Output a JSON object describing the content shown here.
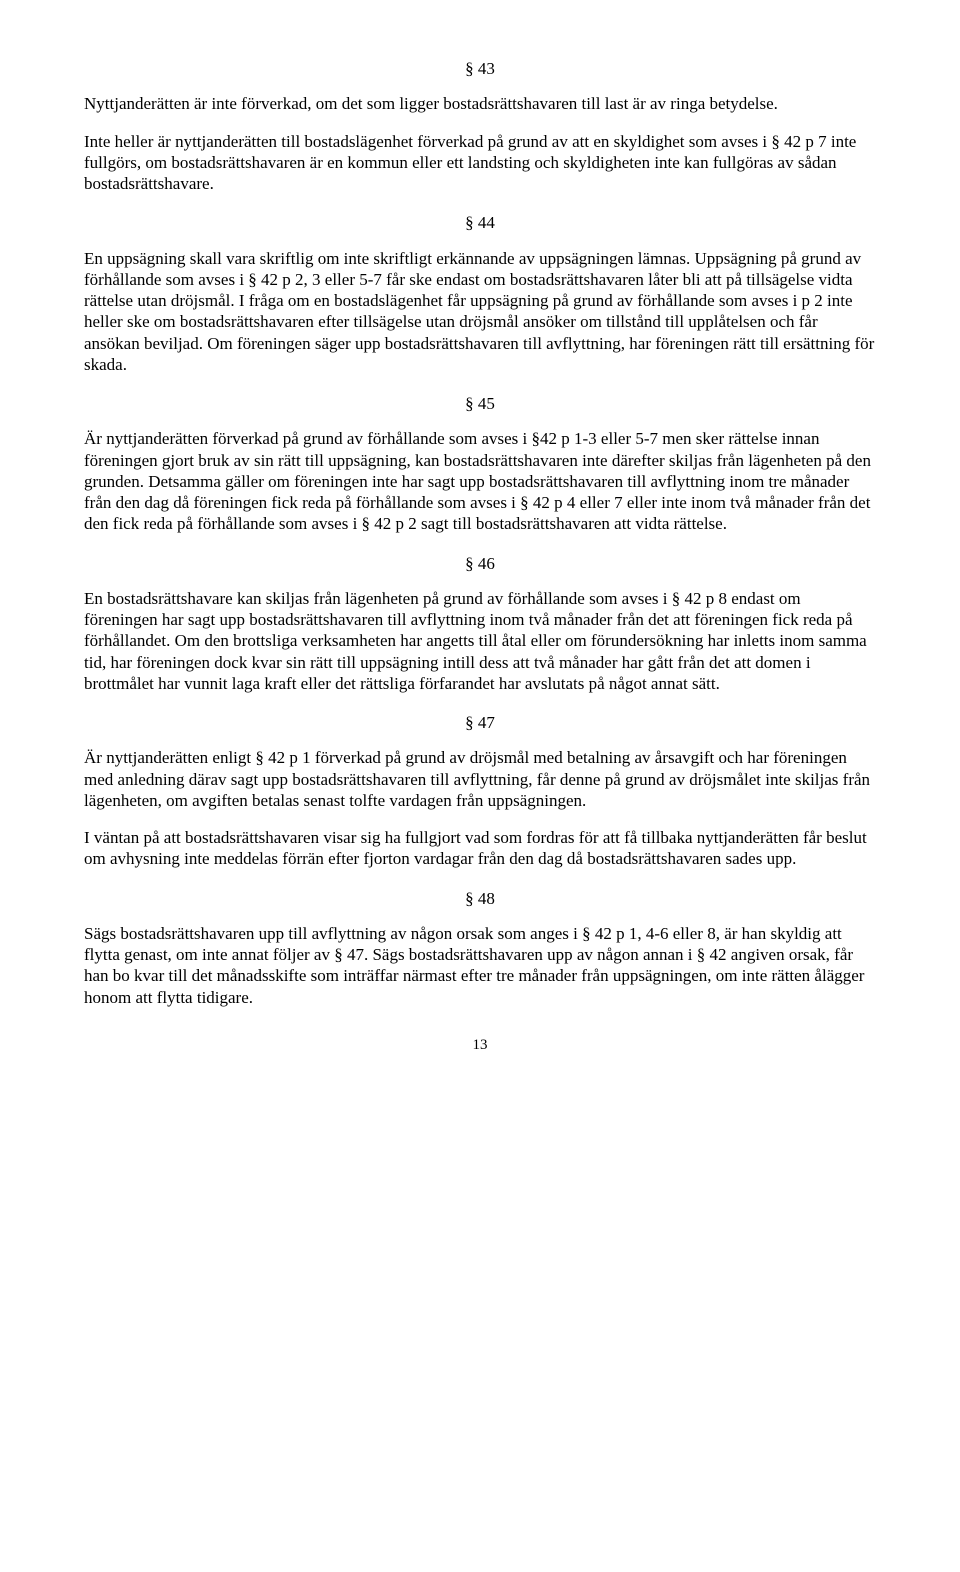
{
  "doc": {
    "page_number": "13",
    "sections": {
      "s43": {
        "heading": "§ 43",
        "p1": "Nyttjanderätten är inte förverkad, om det som ligger bostadsrättshavaren till last är av ringa betydelse.",
        "p2": "Inte heller är nyttjanderätten till bostadslägenhet förverkad på grund av att en skyldighet som avses i § 42 p 7 inte fullgörs, om bostadsrättshavaren är en kommun eller ett landsting och skyldigheten inte kan fullgöras av sådan bostadsrättshavare."
      },
      "s44": {
        "heading": "§ 44",
        "p1": "En uppsägning skall vara skriftlig om inte skriftligt erkännande av uppsägningen lämnas. Uppsägning på grund av förhållande som avses i § 42 p 2, 3 eller 5-7 får ske endast om bostadsrättshavaren låter bli att på tillsägelse vidta rättelse utan dröjsmål. I fråga om en bostadslägenhet får uppsägning på grund av förhållande som avses i p 2 inte heller ske om bostadsrättshavaren efter tillsägelse utan dröjsmål ansöker om tillstånd till upplåtelsen och får ansökan beviljad. Om föreningen säger upp bostadsrättshavaren till avflyttning, har föreningen rätt till ersättning för skada."
      },
      "s45": {
        "heading": "§ 45",
        "p1": "Är nyttjanderätten förverkad på grund av förhållande som avses i §42 p 1-3 eller 5-7 men sker rättelse innan föreningen gjort bruk av sin rätt till uppsägning, kan bostadsrättshavaren inte därefter skiljas från lägenheten på den grunden. Detsamma gäller om föreningen inte har sagt upp bostadsrättshavaren till avflyttning inom tre månader från den dag då föreningen fick reda på förhållande som avses i § 42 p 4 eller 7 eller inte inom två månader från det den fick reda på förhållande som avses i § 42 p 2 sagt till bostadsrättshavaren att vidta rättelse."
      },
      "s46": {
        "heading": "§ 46",
        "p1": "En bostadsrättshavare kan skiljas från lägenheten på grund av förhållande som avses i § 42 p 8 endast om föreningen har sagt upp bostadsrättshavaren till avflyttning inom två månader från det att föreningen fick reda på förhållandet. Om den brottsliga verksamheten har angetts till åtal eller om förundersökning har inletts inom samma tid, har föreningen dock kvar sin rätt till uppsägning intill dess att två månader har gått från det att domen i brottmålet har vunnit laga kraft eller det rättsliga förfarandet har avslutats på något annat sätt."
      },
      "s47": {
        "heading": "§ 47",
        "p1": "Är nyttjanderätten enligt § 42 p 1 förverkad på grund av dröjsmål med betalning av årsavgift och har föreningen med anledning därav sagt upp bostadsrättshavaren till avflyttning, får denne på grund av dröjsmålet inte skiljas från lägenheten, om avgiften betalas senast tolfte vardagen från uppsägningen.",
        "p2": "I väntan på att bostadsrättshavaren visar sig ha fullgjort vad som fordras för att få tillbaka nyttjanderätten får beslut om avhysning inte meddelas förrän efter fjorton vardagar från den dag då bostadsrättshavaren sades upp."
      },
      "s48": {
        "heading": "§ 48",
        "p1": "Sägs bostadsrättshavaren upp till avflyttning av någon orsak som anges i § 42 p 1, 4-6 eller 8, är han skyldig att flytta genast, om inte annat följer av § 47. Sägs bostadsrättshavaren upp av någon annan i § 42 angiven orsak, får han bo kvar till det månadsskifte som inträffar närmast efter tre månader från uppsägningen, om inte rätten ålägger honom att flytta tidigare."
      }
    }
  }
}
